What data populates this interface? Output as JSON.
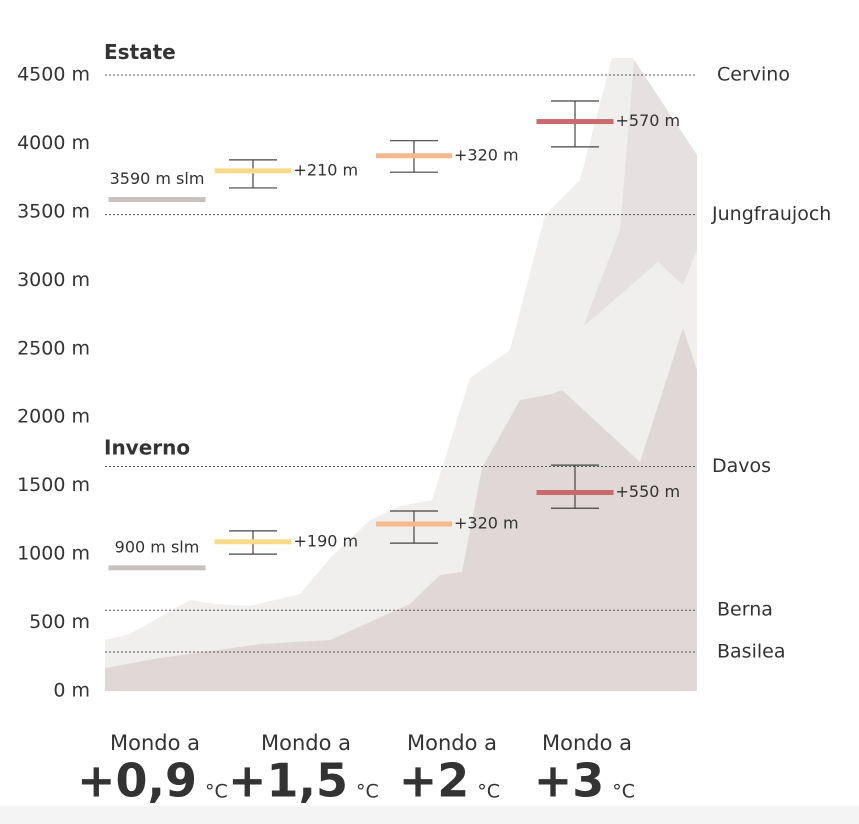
{
  "chart_data": {
    "type": "range-bar",
    "ylim": [
      0,
      4500
    ],
    "yticks": [
      {
        "value": 0,
        "label": "0 m"
      },
      {
        "value": 500,
        "label": "500 m"
      },
      {
        "value": 1000,
        "label": "1000 m"
      },
      {
        "value": 1500,
        "label": "1500 m"
      },
      {
        "value": 2000,
        "label": "2000 m"
      },
      {
        "value": 2500,
        "label": "2500 m"
      },
      {
        "value": 3000,
        "label": "3000 m"
      },
      {
        "value": 3500,
        "label": "3500 m"
      },
      {
        "value": 4000,
        "label": "4000 m"
      },
      {
        "value": 4500,
        "label": "4500 m"
      }
    ],
    "references": [
      {
        "name": "Cervino",
        "value": 4500
      },
      {
        "name": "Jungfraujoch",
        "value": 3480
      },
      {
        "name": "Davos",
        "value": 1640
      },
      {
        "name": "Berna",
        "value": 590
      },
      {
        "name": "Basilea",
        "value": 285
      }
    ],
    "scenarios": [
      {
        "prefix": "Mondo a",
        "name": "+0,9",
        "unit": "°C",
        "color": "#c9c1bd"
      },
      {
        "prefix": "Mondo a",
        "name": "+1,5",
        "unit": "°C",
        "color": "#f7db8a"
      },
      {
        "prefix": "Mondo a",
        "name": "+2",
        "unit": "°C",
        "color": "#f5b88d"
      },
      {
        "prefix": "Mondo a",
        "name": "+3",
        "unit": "°C",
        "color": "#c86a6e"
      }
    ],
    "seasons": [
      {
        "name": "Estate",
        "baseline": 3590,
        "baseline_label": "3590 m slm",
        "increases": [
          210,
          320,
          570
        ],
        "value_labels": [
          "+210 m",
          "+320 m",
          "+570 m"
        ],
        "range_low": [
          3675,
          3790,
          3975
        ],
        "range_high": [
          3880,
          4020,
          4310
        ]
      },
      {
        "name": "Inverno",
        "baseline": 900,
        "baseline_label": "900 m slm",
        "increases": [
          190,
          320,
          550
        ],
        "value_labels": [
          "+190 m",
          "+320 m",
          "+550 m"
        ],
        "range_low": [
          1000,
          1080,
          1335
        ],
        "range_high": [
          1170,
          1315,
          1650
        ]
      }
    ]
  }
}
